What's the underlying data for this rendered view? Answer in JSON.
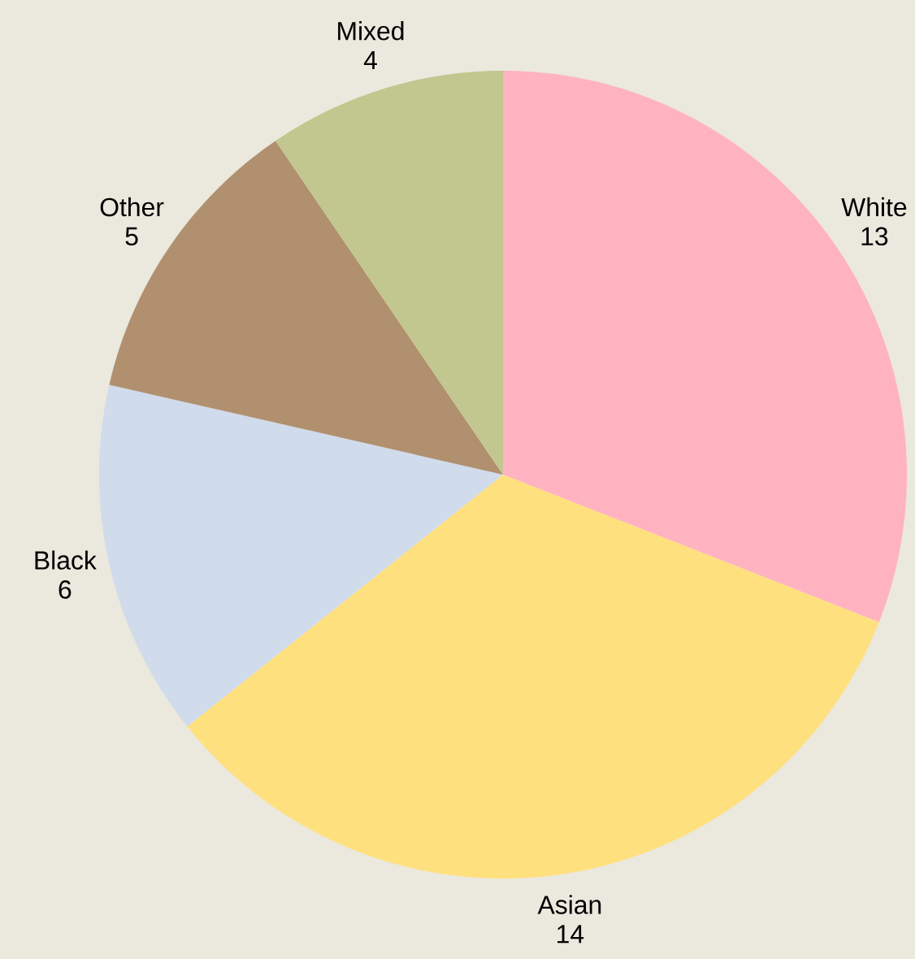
{
  "chart_data": {
    "type": "pie",
    "categories": [
      "White",
      "Asian",
      "Black",
      "Other",
      "Mixed"
    ],
    "values": [
      13,
      14,
      6,
      5,
      4
    ],
    "colors": [
      "#ffb3c1",
      "#ffe07f",
      "#d0dbec",
      "#b0906f",
      "#c2c68f"
    ],
    "data_labels": true
  }
}
